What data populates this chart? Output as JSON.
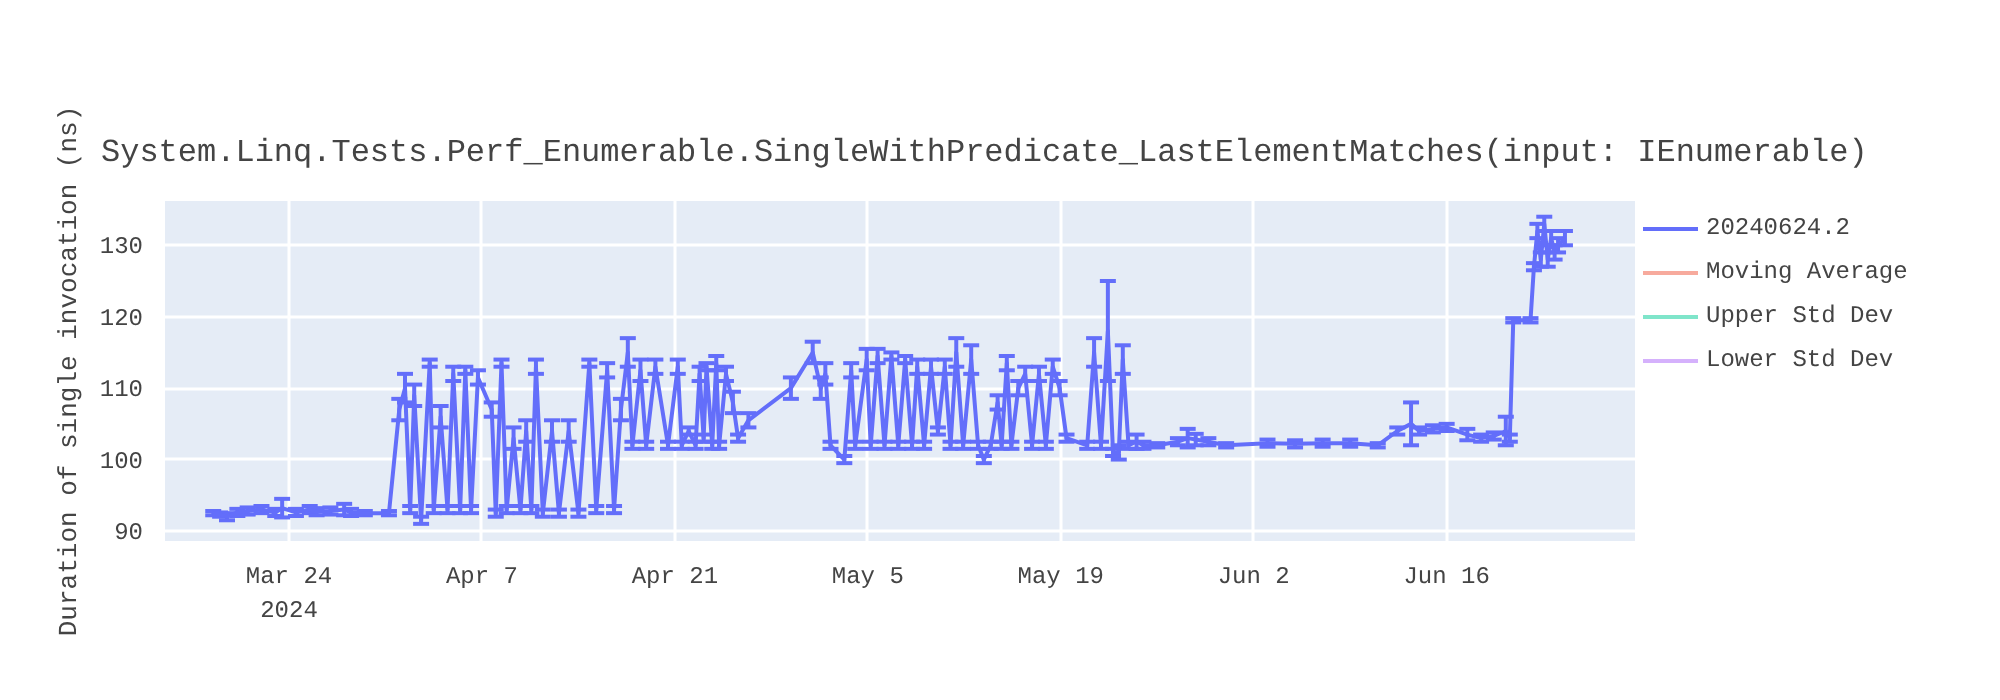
{
  "chart_data": {
    "type": "line",
    "title": "System.Linq.Tests.Perf_Enumerable.SingleWithPredicate_LastElementMatches(input: IEnumerable)",
    "ylabel": "Duration of single invocation (ns)",
    "xlim": [
      "2024-03-15",
      "2024-06-29T16:00"
    ],
    "ylim": [
      88.6,
      136.2
    ],
    "xticks": [
      {
        "value": "2024-03-24",
        "label": "Mar 24\n2024"
      },
      {
        "value": "2024-04-07",
        "label": "Apr 7"
      },
      {
        "value": "2024-04-21",
        "label": "Apr 21"
      },
      {
        "value": "2024-05-05",
        "label": "May 5"
      },
      {
        "value": "2024-05-19",
        "label": "May 19"
      },
      {
        "value": "2024-06-02",
        "label": "Jun 2"
      },
      {
        "value": "2024-06-16",
        "label": "Jun 16"
      }
    ],
    "yticks": [
      90,
      100,
      110,
      120,
      130
    ],
    "grid": true,
    "legend": "top right",
    "line_style": "solid",
    "marker": "none",
    "series": [
      {
        "name": "20240624.2",
        "color": "#636efa",
        "x": [
          "2024-03-18T12:00",
          "2024-03-19T00:00",
          "2024-03-19T12:00",
          "2024-03-20T06:00",
          "2024-03-21T00:00",
          "2024-03-22T00:00",
          "2024-03-23T00:00",
          "2024-03-23T12:00",
          "2024-03-24T12:00",
          "2024-03-25T12:00",
          "2024-03-26T00:00",
          "2024-03-27T00:00",
          "2024-03-28T00:00",
          "2024-03-28T12:00",
          "2024-03-29T12:00",
          "2024-03-31T06:00",
          "2024-04-01T00:00",
          "2024-04-01T10:00",
          "2024-04-01T19:00",
          "2024-04-02T02:00",
          "2024-04-02T14:00",
          "2024-04-03T05:00",
          "2024-04-03T12:00",
          "2024-04-04T00:00",
          "2024-04-04T12:00",
          "2024-04-04T22:00",
          "2024-04-05T10:00",
          "2024-04-05T19:00",
          "2024-04-06T05:00",
          "2024-04-06T17:00",
          "2024-04-07T17:00",
          "2024-04-08T00:00",
          "2024-04-08T10:00",
          "2024-04-08T19:00",
          "2024-04-09T07:00",
          "2024-04-09T19:00",
          "2024-04-10T05:00",
          "2024-04-10T14:00",
          "2024-04-10T22:00",
          "2024-04-11T10:00",
          "2024-04-12T02:00",
          "2024-04-12T14:00",
          "2024-04-13T07:00",
          "2024-04-14T00:00",
          "2024-04-14T19:00",
          "2024-04-15T07:00",
          "2024-04-16T02:00",
          "2024-04-16T14:00",
          "2024-04-17T02:00",
          "2024-04-17T14:00",
          "2024-04-17T22:00",
          "2024-04-18T12:00",
          "2024-04-18T22:00",
          "2024-04-19T14:00",
          "2024-04-20T12:00",
          "2024-04-21T05:00",
          "2024-04-21T12:00",
          "2024-04-22T00:00",
          "2024-04-22T12:00",
          "2024-04-22T19:00",
          "2024-04-23T02:00",
          "2024-04-23T07:00",
          "2024-04-23T17:00",
          "2024-04-24T00:00",
          "2024-04-24T05:00",
          "2024-04-24T17:00",
          "2024-04-25T05:00",
          "2024-04-25T14:00",
          "2024-04-26T08:00",
          "2024-04-29T10:00",
          "2024-05-01T00:00",
          "2024-05-01T14:00",
          "2024-05-01T22:00",
          "2024-05-02T07:00",
          "2024-05-03T07:00",
          "2024-05-03T19:00",
          "2024-05-04T02:00",
          "2024-05-04T22:00",
          "2024-05-05T05:00",
          "2024-05-05T17:00",
          "2024-05-06T05:00",
          "2024-05-06T17:00",
          "2024-05-07T05:00",
          "2024-05-07T17:00",
          "2024-05-08T05:00",
          "2024-05-08T14:00",
          "2024-05-09T02:00",
          "2024-05-09T14:00",
          "2024-05-10T02:00",
          "2024-05-10T14:00",
          "2024-05-11T00:00",
          "2024-05-11T10:00",
          "2024-05-11T22:00",
          "2024-05-12T12:00",
          "2024-05-13T00:00",
          "2024-05-13T10:00",
          "2024-05-13T22:00",
          "2024-05-14T10:00",
          "2024-05-14T17:00",
          "2024-05-15T02:00",
          "2024-05-15T10:00",
          "2024-05-15T22:00",
          "2024-05-16T10:00",
          "2024-05-16T22:00",
          "2024-05-17T10:00",
          "2024-05-17T22:00",
          "2024-05-18T10:00",
          "2024-05-18T22:00",
          "2024-05-19T10:00",
          "2024-05-20T22:00",
          "2024-05-21T10:00",
          "2024-05-21T22:00",
          "2024-05-22T10:00",
          "2024-05-22T19:00",
          "2024-05-23T05:00",
          "2024-05-23T12:00",
          "2024-05-23T22:00",
          "2024-05-24T12:00",
          "2024-05-25T00:00",
          "2024-05-26T00:00",
          "2024-05-27T12:00",
          "2024-05-28T05:00",
          "2024-05-28T19:00",
          "2024-05-29T17:00",
          "2024-05-31T00:00",
          "2024-06-03T00:00",
          "2024-06-05T00:00",
          "2024-06-07T00:00",
          "2024-06-09T00:00",
          "2024-06-11T00:00",
          "2024-06-12T10:00",
          "2024-06-13T10:00",
          "2024-06-14T00:00",
          "2024-06-15T00:00",
          "2024-06-16T00:00",
          "2024-06-17T12:00",
          "2024-06-18T12:00",
          "2024-06-19T10:00",
          "2024-06-20T07:00",
          "2024-06-20T14:00",
          "2024-06-20T20:00",
          "2024-06-22T02:00",
          "2024-06-22T08:00",
          "2024-06-22T14:00",
          "2024-06-22T20:00",
          "2024-06-23T02:00",
          "2024-06-23T08:00",
          "2024-06-23T14:00",
          "2024-06-23T20:00",
          "2024-06-24T02:00",
          "2024-06-24T14:00"
        ],
        "values": [
          92.5,
          92.3,
          92.0,
          92.6,
          92.8,
          93.0,
          92.6,
          93.2,
          92.6,
          93.0,
          92.7,
          92.8,
          93.0,
          92.6,
          92.5,
          92.5,
          107,
          110,
          93,
          109,
          91.5,
          113.5,
          93,
          106,
          93,
          112,
          93,
          112.5,
          93,
          111.5,
          107,
          92.5,
          113.5,
          93,
          103,
          93,
          104,
          93,
          113,
          92.5,
          104,
          92.5,
          104,
          92.5,
          113.5,
          93,
          112.5,
          93,
          107,
          115,
          102,
          112.5,
          102,
          113,
          102,
          113,
          102,
          104,
          102,
          112,
          103,
          113,
          102,
          113.5,
          102,
          112,
          108,
          103,
          105.5,
          110,
          115,
          110,
          112,
          102,
          100,
          112.5,
          102,
          114,
          102,
          114.5,
          102,
          114.5,
          102,
          114,
          102,
          113,
          102,
          113,
          104,
          113,
          102,
          115,
          102,
          114,
          102,
          100,
          102,
          108,
          102,
          113.5,
          102,
          110,
          112,
          102,
          112,
          102,
          113,
          110,
          103,
          102,
          115,
          102,
          118,
          101,
          101,
          114,
          102,
          102.5,
          102,
          102,
          102.5,
          103,
          102.8,
          102.5,
          102,
          102.3,
          102.2,
          102.3,
          102.3,
          102,
          104,
          105,
          104,
          104.3,
          104.5,
          103.5,
          103,
          103.3,
          104,
          103,
          119.5,
          119.5,
          127,
          132,
          128,
          133,
          128,
          131,
          129,
          130,
          131
        ],
        "errors": [
          0.3,
          0.3,
          0.5,
          0.5,
          0.5,
          0.5,
          0.5,
          1.3,
          0.5,
          0.5,
          0.5,
          0.5,
          0.8,
          0.5,
          0.3,
          0.3,
          1.5,
          2,
          0.5,
          1.5,
          0.5,
          0.5,
          0.5,
          1.5,
          0.5,
          1,
          0.5,
          0.5,
          0.5,
          1,
          1,
          0.5,
          0.5,
          0.5,
          1.5,
          0.5,
          1.5,
          0.5,
          1,
          0.5,
          1.5,
          0.5,
          1.5,
          0.5,
          0.5,
          0.5,
          1,
          0.5,
          1.5,
          2,
          0.5,
          1.5,
          0.5,
          1,
          0.5,
          1,
          0.5,
          0.5,
          0.5,
          1,
          0.5,
          0.5,
          0.5,
          1,
          0.5,
          1,
          1.5,
          0.5,
          1,
          1.5,
          1.5,
          1.5,
          1.5,
          0.5,
          0.5,
          1,
          0.5,
          1.5,
          0.5,
          1,
          0.5,
          0.5,
          0.5,
          0.5,
          0.5,
          1,
          0.5,
          1,
          0.5,
          1,
          0.5,
          2,
          0.5,
          2,
          0.5,
          0.5,
          0.5,
          1,
          0.5,
          1,
          0.5,
          1,
          1,
          0.5,
          1,
          0.5,
          1,
          1,
          0.5,
          0.5,
          2,
          0.5,
          7,
          0.5,
          1,
          2,
          0.5,
          1,
          0.5,
          0.3,
          0.5,
          1.3,
          0.8,
          0.5,
          0.3,
          0.5,
          0.5,
          0.5,
          0.5,
          0.3,
          0.5,
          3,
          0.5,
          0.5,
          0.5,
          0.8,
          0.5,
          0.5,
          2,
          0.5,
          0.3,
          0.3,
          0.5,
          1,
          1,
          1,
          1,
          1,
          1,
          1,
          1
        ]
      },
      {
        "name": "Moving Average",
        "color": "#ef553b"
      },
      {
        "name": "Upper Std Dev",
        "color": "#00cc96"
      },
      {
        "name": "Lower Std Dev",
        "color": "#ab63fa"
      }
    ]
  }
}
